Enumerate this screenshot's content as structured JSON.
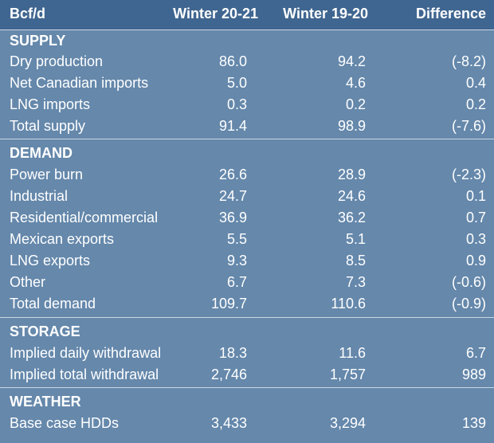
{
  "header": {
    "unit": "Bcf/d",
    "col1": "Winter 20-21",
    "col2": "Winter 19-20",
    "col3": "Difference"
  },
  "sections": [
    {
      "title": "SUPPLY",
      "rows": [
        {
          "label": "Dry production",
          "w2021": "86.0",
          "w1920": "94.2",
          "diff": "(-8.2)"
        },
        {
          "label": "Net Canadian imports",
          "w2021": "5.0",
          "w1920": "4.6",
          "diff": "0.4"
        },
        {
          "label": "LNG imports",
          "w2021": "0.3",
          "w1920": "0.2",
          "diff": "0.2"
        },
        {
          "label": "Total supply",
          "w2021": "91.4",
          "w1920": "98.9",
          "diff": "(-7.6)"
        }
      ]
    },
    {
      "title": "DEMAND",
      "rows": [
        {
          "label": "Power burn",
          "w2021": "26.6",
          "w1920": "28.9",
          "diff": "(-2.3)"
        },
        {
          "label": "Industrial",
          "w2021": "24.7",
          "w1920": "24.6",
          "diff": "0.1"
        },
        {
          "label": "Residential/commercial",
          "w2021": "36.9",
          "w1920": "36.2",
          "diff": "0.7"
        },
        {
          "label": "Mexican exports",
          "w2021": "5.5",
          "w1920": "5.1",
          "diff": "0.3"
        },
        {
          "label": "LNG exports",
          "w2021": "9.3",
          "w1920": "8.5",
          "diff": "0.9"
        },
        {
          "label": "Other",
          "w2021": "6.7",
          "w1920": "7.3",
          "diff": "(-0.6)"
        },
        {
          "label": "Total demand",
          "w2021": "109.7",
          "w1920": "110.6",
          "diff": "(-0.9)"
        }
      ]
    },
    {
      "title": "STORAGE",
      "rows": [
        {
          "label": "Implied daily withdrawal",
          "w2021": "18.3",
          "w1920": "11.6",
          "diff": "6.7"
        },
        {
          "label": "Implied total withdrawal",
          "w2021": "2,746",
          "w1920": "1,757",
          "diff": "989"
        }
      ]
    },
    {
      "title": "WEATHER",
      "rows": [
        {
          "label": "Base case HDDs",
          "w2021": "3,433",
          "w1920": "3,294",
          "diff": "139"
        }
      ]
    }
  ]
}
